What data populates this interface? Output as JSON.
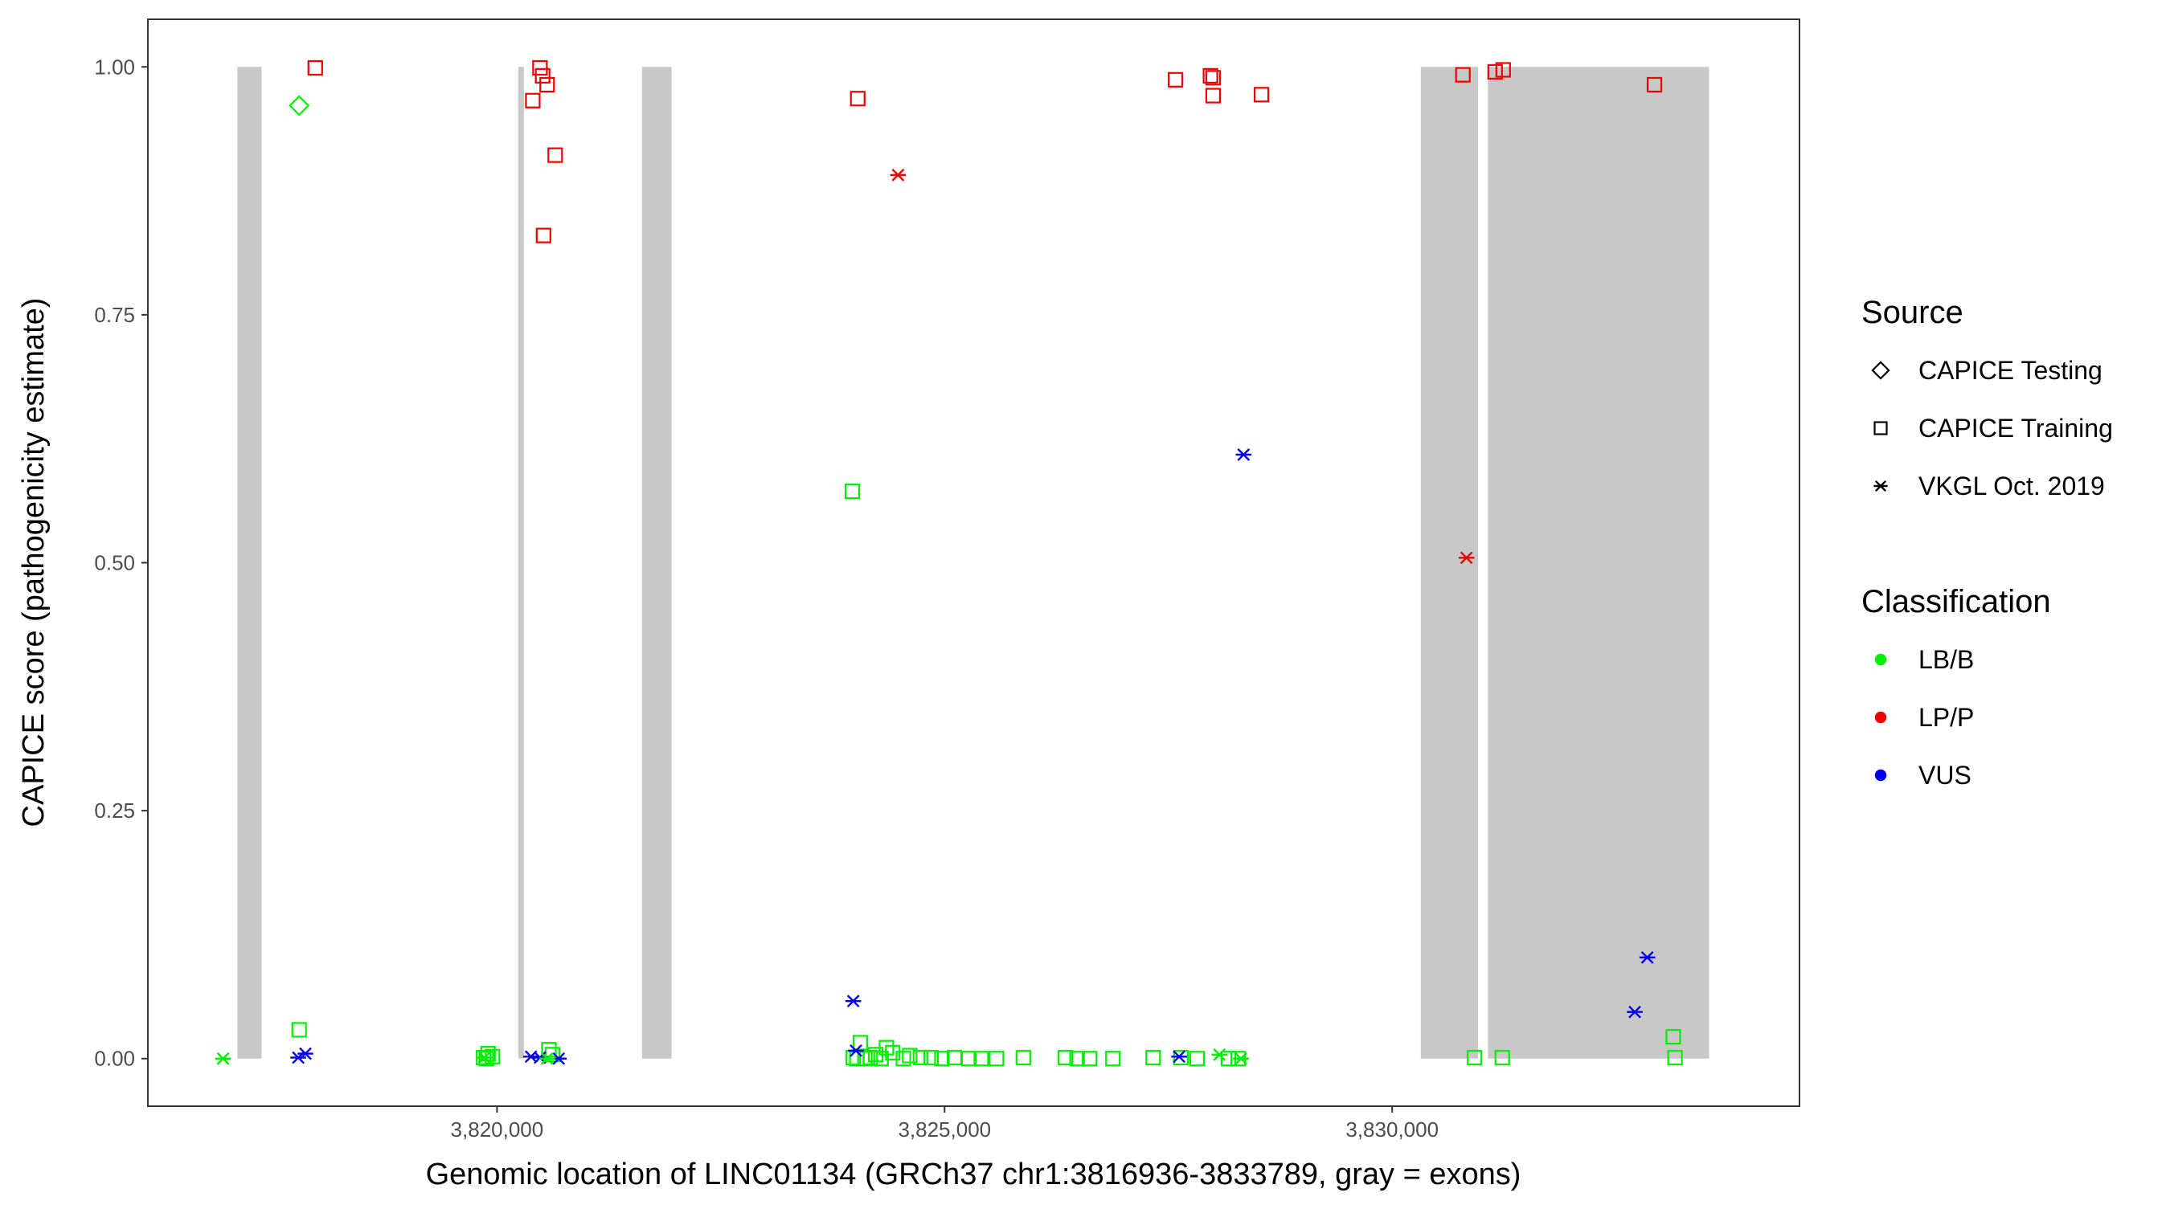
{
  "chart_data": {
    "type": "scatter",
    "title": "",
    "xlabel": "Genomic location of LINC01134 (GRCh37 chr1:3816936-3833789, gray = exons)",
    "ylabel": "CAPICE score (pathogenicity estimate)",
    "xlim": [
      3816100,
      3834550
    ],
    "ylim": [
      -0.048,
      1.048
    ],
    "x_ticks": [
      3820000,
      3825000,
      3830000
    ],
    "x_tick_labels": [
      "3,820,000",
      "3,825,000",
      "3,830,000"
    ],
    "y_ticks": [
      0,
      0.25,
      0.5,
      0.75,
      1
    ],
    "y_tick_labels": [
      "0.00",
      "0.25",
      "0.50",
      "0.75",
      "1.00"
    ],
    "grid": false,
    "colors": {
      "LB/B": "#00ee00",
      "LP/P": "#ee0000",
      "VUS": "#0000ee",
      "exon": "#c8c8c8"
    },
    "exons": [
      {
        "start": 3817100,
        "end": 3817370
      },
      {
        "start": 3820240,
        "end": 3820300
      },
      {
        "start": 3821620,
        "end": 3821950
      },
      {
        "start": 3830320,
        "end": 3830960
      },
      {
        "start": 3831070,
        "end": 3833540
      }
    ],
    "legends": [
      {
        "title": "Source",
        "kind": "shape",
        "position": "right",
        "entries": [
          {
            "label": "CAPICE Testing",
            "shape": "diamond"
          },
          {
            "label": "CAPICE Training",
            "shape": "square"
          },
          {
            "label": "VKGL Oct. 2019",
            "shape": "asterisk"
          }
        ]
      },
      {
        "title": "Classification",
        "kind": "color",
        "position": "right",
        "entries": [
          {
            "label": "LB/B",
            "class": "LB/B"
          },
          {
            "label": "LP/P",
            "class": "LP/P"
          },
          {
            "label": "VUS",
            "class": "VUS"
          }
        ]
      }
    ],
    "series": [
      {
        "source": "CAPICE Testing",
        "class": "LB/B",
        "shape": "diamond",
        "x": [
          3817790
        ],
        "y": [
          0.961
        ]
      },
      {
        "source": "CAPICE Training",
        "class": "LP/P",
        "shape": "square",
        "x": [
          3817970,
          3820400,
          3820480,
          3820510,
          3820560,
          3820650,
          3820520,
          3824030,
          3827580,
          3827970,
          3828000,
          3828000,
          3828540,
          3830790,
          3831150,
          3831240,
          3832930
        ],
        "y": [
          0.999,
          0.966,
          0.999,
          0.991,
          0.982,
          0.911,
          0.83,
          0.968,
          0.987,
          0.991,
          0.989,
          0.971,
          0.972,
          0.992,
          0.995,
          0.997,
          0.982
        ]
      },
      {
        "source": "CAPICE Training",
        "class": "LB/B",
        "shape": "square",
        "x": [
          3817790,
          3819850,
          3819900,
          3819950,
          3819880,
          3820580,
          3820620,
          3823970,
          3824020,
          3823980,
          3824060,
          3824110,
          3824170,
          3824230,
          3824290,
          3824350,
          3824420,
          3824540,
          3824610,
          3824730,
          3824850,
          3824970,
          3825110,
          3825270,
          3825410,
          3825580,
          3825880,
          3826350,
          3826480,
          3826620,
          3826880,
          3827330,
          3827640,
          3827820,
          3828170,
          3828280,
          3830920,
          3831230,
          3833140,
          3833160
        ],
        "y": [
          0.029,
          0.001,
          0.005,
          0.002,
          0.0,
          0.009,
          0.004,
          0.572,
          0.0,
          0.001,
          0.016,
          0.0,
          0.001,
          0.004,
          0.0,
          0.011,
          0.006,
          0.0,
          0.003,
          0.001,
          0.001,
          0.0,
          0.001,
          0.0,
          0.0,
          0.0,
          0.001,
          0.001,
          0.0,
          0.0,
          0.0,
          0.001,
          0.001,
          0.0,
          0.0,
          0.0,
          0.001,
          0.001,
          0.022,
          0.001
        ]
      },
      {
        "source": "VKGL Oct. 2019",
        "class": "LP/P",
        "shape": "asterisk",
        "x": [
          3824480,
          3830830
        ],
        "y": [
          0.891,
          0.505
        ]
      },
      {
        "source": "VKGL Oct. 2019",
        "class": "VUS",
        "shape": "asterisk",
        "x": [
          3817780,
          3817860,
          3820380,
          3820480,
          3820690,
          3823980,
          3824010,
          3827620,
          3828340,
          3832710,
          3832850
        ],
        "y": [
          0.001,
          0.005,
          0.002,
          0.001,
          0.0,
          0.058,
          0.008,
          0.002,
          0.609,
          0.047,
          0.102
        ]
      },
      {
        "source": "VKGL Oct. 2019",
        "class": "LB/B",
        "shape": "asterisk",
        "x": [
          3816940,
          3819860,
          3820560,
          3828070,
          3828310
        ],
        "y": [
          0.0,
          0.001,
          0.0,
          0.004,
          0.0
        ]
      }
    ]
  }
}
